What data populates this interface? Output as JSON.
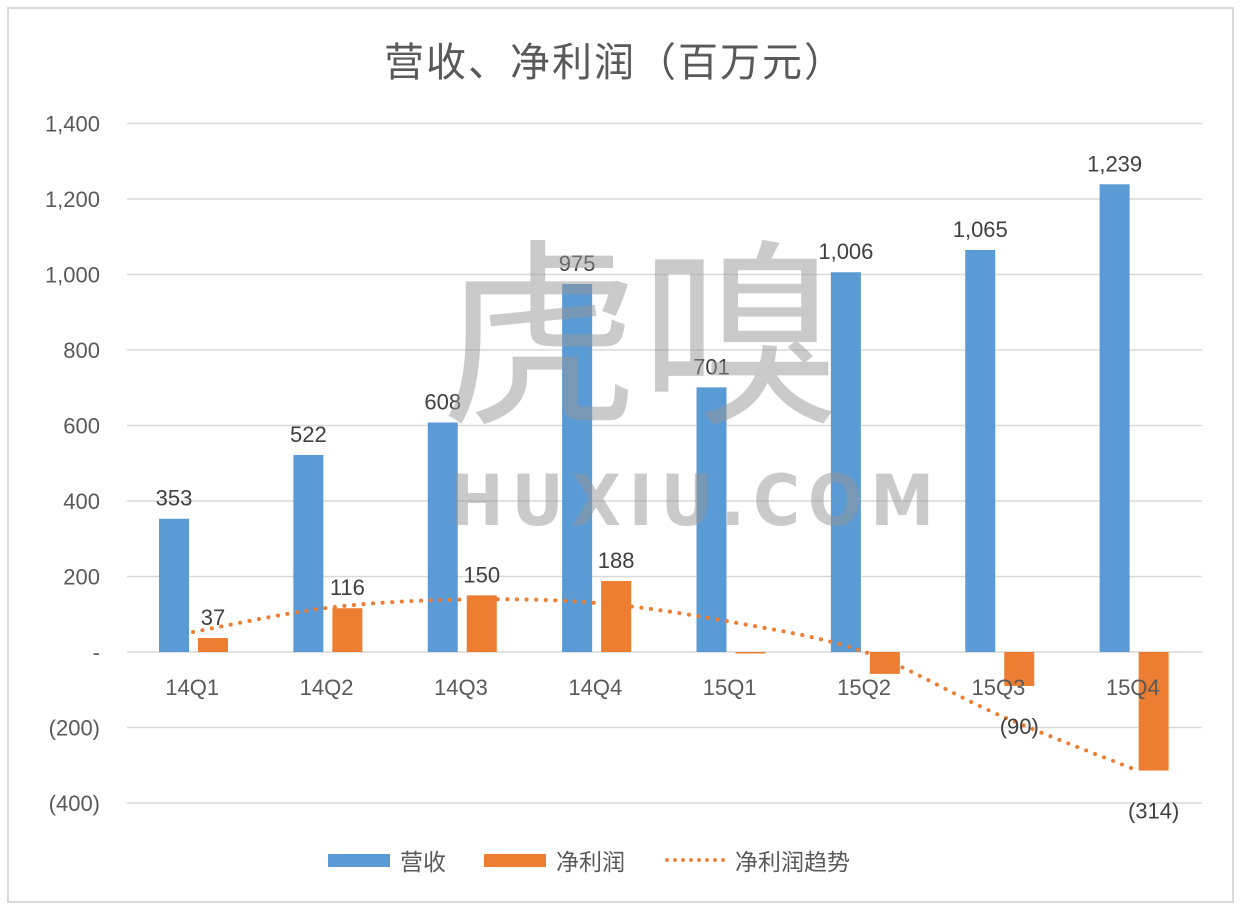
{
  "chart_data": {
    "type": "bar",
    "title": "营收、净利润（百万元）",
    "xlabel": "",
    "ylabel": "",
    "categories": [
      "14Q1",
      "14Q2",
      "14Q3",
      "14Q4",
      "15Q1",
      "15Q2",
      "15Q3",
      "15Q4"
    ],
    "series": [
      {
        "name": "营收",
        "type": "bar",
        "color": "#5B9BD5",
        "values": [
          353,
          522,
          608,
          975,
          701,
          1006,
          1065,
          1239
        ],
        "labels": [
          "353",
          "522",
          "608",
          "975",
          "701",
          "1,006",
          "1,065",
          "1,239"
        ]
      },
      {
        "name": "净利润",
        "type": "bar",
        "color": "#ED7D31",
        "values": [
          37,
          116,
          150,
          188,
          -2,
          -58,
          -90,
          -314
        ],
        "labels": [
          "37",
          "116",
          "150",
          "188",
          "",
          "",
          "(90)",
          "(314)"
        ]
      },
      {
        "name": "净利润趋势",
        "type": "line",
        "style": "dotted",
        "color": "#ED7D31",
        "values": [
          53,
          117,
          139,
          130,
          80,
          0,
          -167,
          -310
        ]
      }
    ],
    "ylim": [
      -400,
      1400
    ],
    "yticks": [
      1400,
      1200,
      1000,
      800,
      600,
      400,
      200,
      0,
      -200,
      -400
    ],
    "ytick_labels": [
      "1,400",
      "1,200",
      "1,000",
      "800",
      "600",
      "400",
      "200",
      "-",
      "(200)",
      "(400)"
    ],
    "grid": true,
    "legend_position": "bottom"
  },
  "legend": {
    "items": [
      {
        "label": "营收",
        "kind": "bar",
        "color": "#5B9BD5"
      },
      {
        "label": "净利润",
        "kind": "bar",
        "color": "#ED7D31"
      },
      {
        "label": "净利润趋势",
        "kind": "dotted-line",
        "color": "#ED7D31"
      }
    ]
  },
  "watermark": {
    "chinese": "虎嗅",
    "english": "HUXIU.COM"
  }
}
